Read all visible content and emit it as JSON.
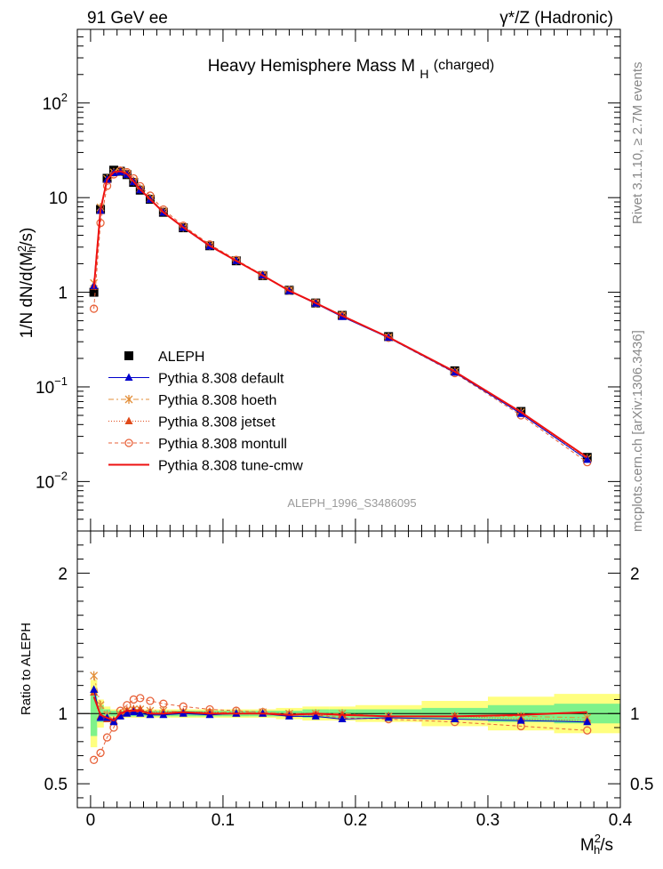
{
  "header": {
    "left": "91 GeV ee",
    "right": "γ*/Z (Hadronic)"
  },
  "side_labels": {
    "rivet": "Rivet 3.1.10, ≥ 2.7M events",
    "mcplots": "mcplots.cern.ch [arXiv:1306.3436]"
  },
  "watermark": "ALEPH_1996_S3486095",
  "colors": {
    "aleph": "#000000",
    "default": "#0000cc",
    "hoeth": "#e38f3a",
    "jetset": "#e04a1a",
    "montull": "#e8623a",
    "cmw": "#ee1111",
    "band_green": "#7ff28a",
    "band_yellow": "#ffff7f"
  },
  "chart_data": [
    {
      "type": "line",
      "title_main": "Heavy Hemisphere Mass M",
      "title_sub": "H",
      "title_tail": "(charged)",
      "ylabel": "1/N dN/d(M_h^2/s)",
      "yscale": "log",
      "ylim": [
        0.003,
        600
      ],
      "xlim": [
        -0.01,
        0.4
      ],
      "yticks": [
        {
          "v": 0.01,
          "base": "10",
          "exp": "−2"
        },
        {
          "v": 0.1,
          "base": "10",
          "exp": "−1"
        },
        {
          "v": 1,
          "base": "1",
          "exp": ""
        },
        {
          "v": 10,
          "base": "10",
          "exp": ""
        },
        {
          "v": 100,
          "base": "10",
          "exp": "2"
        }
      ],
      "legend_position": "lower-left",
      "x": [
        0.0025,
        0.0075,
        0.0125,
        0.0175,
        0.0225,
        0.0275,
        0.0325,
        0.0375,
        0.045,
        0.055,
        0.07,
        0.09,
        0.11,
        0.13,
        0.15,
        0.17,
        0.19,
        0.225,
        0.275,
        0.325,
        0.375
      ],
      "series": [
        {
          "name": "ALEPH",
          "key": "aleph",
          "marker": "square",
          "values": [
            1.0,
            7.5,
            16.0,
            19.5,
            19.0,
            17.5,
            14.5,
            12.0,
            9.6,
            7.0,
            4.8,
            3.1,
            2.15,
            1.5,
            1.05,
            0.77,
            0.57,
            0.34,
            0.148,
            0.055,
            0.018
          ]
        },
        {
          "name": "Pythia 8.308 default",
          "key": "default",
          "marker": "triangle",
          "dash": "",
          "values": [
            1.17,
            7.3,
            15.5,
            18.2,
            18.6,
            17.5,
            14.6,
            12.0,
            9.5,
            6.95,
            4.8,
            3.06,
            2.14,
            1.51,
            1.03,
            0.76,
            0.55,
            0.33,
            0.142,
            0.052,
            0.017
          ]
        },
        {
          "name": "Pythia 8.308 hoeth",
          "key": "hoeth",
          "marker": "star",
          "dash": "6,3,2,3",
          "values": [
            1.25,
            7.9,
            15.8,
            18.5,
            18.8,
            17.9,
            15.0,
            12.4,
            9.8,
            7.15,
            4.85,
            3.13,
            2.18,
            1.52,
            1.05,
            0.77,
            0.57,
            0.335,
            0.145,
            0.054,
            0.0175
          ]
        },
        {
          "name": "Pythia 8.308 jetset",
          "key": "jetset",
          "marker": "triangle",
          "dash": "1,2",
          "values": [
            1.15,
            7.4,
            15.4,
            18.4,
            19.0,
            17.8,
            14.9,
            12.3,
            9.7,
            7.05,
            4.85,
            3.12,
            2.15,
            1.5,
            1.04,
            0.765,
            0.565,
            0.335,
            0.145,
            0.053,
            0.0172
          ]
        },
        {
          "name": "Pythia 8.308 montull",
          "key": "montull",
          "marker": "circle",
          "dash": "4,3",
          "values": [
            0.67,
            5.4,
            13.3,
            17.6,
            19.3,
            18.6,
            16.0,
            13.2,
            10.5,
            7.5,
            5.05,
            3.2,
            2.2,
            1.52,
            1.04,
            0.77,
            0.565,
            0.33,
            0.14,
            0.05,
            0.016
          ]
        },
        {
          "name": "Pythia 8.308 tune-cmw",
          "key": "cmw",
          "marker": "none",
          "dash": "",
          "values": [
            1.1,
            7.4,
            15.5,
            18.6,
            19.0,
            17.8,
            14.8,
            12.2,
            9.6,
            7.0,
            4.85,
            3.1,
            2.15,
            1.5,
            1.04,
            0.77,
            0.565,
            0.335,
            0.145,
            0.054,
            0.018
          ]
        }
      ]
    },
    {
      "type": "line",
      "ylabel": "Ratio to ALEPH",
      "xlabel_main": "M",
      "xlabel_sup": "2",
      "xlabel_sub": "h",
      "xlabel_tail": "/s",
      "ylim": [
        0.33,
        2.3
      ],
      "xlim": [
        -0.01,
        0.4
      ],
      "yticks": [
        0.5,
        1,
        2
      ],
      "xticks": [
        0,
        0.1,
        0.2,
        0.3,
        0.4
      ],
      "xticklabels": [
        "0",
        "0.1",
        "0.2",
        "0.3",
        "0.4"
      ],
      "band_edges": [
        0.0,
        0.005,
        0.01,
        0.015,
        0.02,
        0.025,
        0.03,
        0.035,
        0.04,
        0.05,
        0.06,
        0.08,
        0.1,
        0.12,
        0.14,
        0.16,
        0.18,
        0.2,
        0.25,
        0.3,
        0.35,
        0.4
      ],
      "band_green": [
        0.16,
        0.06,
        0.03,
        0.02,
        0.02,
        0.02,
        0.02,
        0.02,
        0.02,
        0.02,
        0.02,
        0.02,
        0.02,
        0.02,
        0.02,
        0.03,
        0.03,
        0.03,
        0.04,
        0.06,
        0.07
      ],
      "band_yellow": [
        0.24,
        0.1,
        0.05,
        0.03,
        0.03,
        0.03,
        0.03,
        0.03,
        0.03,
        0.03,
        0.03,
        0.03,
        0.03,
        0.03,
        0.04,
        0.05,
        0.05,
        0.06,
        0.09,
        0.12,
        0.14
      ],
      "series": [
        {
          "key": "default",
          "marker": "triangle",
          "dash": "",
          "values": [
            1.17,
            0.97,
            0.97,
            0.94,
            0.98,
            1.0,
            1.01,
            1.0,
            0.99,
            0.99,
            1.0,
            0.99,
            1.0,
            1.0,
            0.98,
            0.98,
            0.96,
            0.97,
            0.96,
            0.95,
            0.94
          ]
        },
        {
          "key": "hoeth",
          "marker": "star",
          "dash": "6,3,2,3",
          "values": [
            1.27,
            1.06,
            0.99,
            0.95,
            0.99,
            1.02,
            1.03,
            1.03,
            1.02,
            1.02,
            1.01,
            1.01,
            1.01,
            1.01,
            1.0,
            1.0,
            1.0,
            0.98,
            0.98,
            0.98,
            0.97
          ]
        },
        {
          "key": "jetset",
          "marker": "triangle",
          "dash": "1,2",
          "values": [
            1.15,
            0.98,
            0.96,
            0.95,
            1.0,
            1.02,
            1.03,
            1.03,
            1.01,
            1.01,
            1.01,
            1.01,
            1.0,
            1.0,
            0.99,
            0.99,
            0.99,
            0.98,
            0.98,
            0.96,
            0.95
          ]
        },
        {
          "key": "montull",
          "marker": "circle",
          "dash": "4,3",
          "values": [
            0.67,
            0.72,
            0.83,
            0.9,
            1.02,
            1.06,
            1.1,
            1.11,
            1.09,
            1.07,
            1.05,
            1.03,
            1.02,
            1.01,
            0.99,
            0.99,
            0.97,
            0.96,
            0.94,
            0.91,
            0.88
          ]
        },
        {
          "key": "cmw",
          "marker": "none",
          "dash": "",
          "values": [
            1.12,
            0.99,
            0.97,
            0.95,
            1.0,
            1.02,
            1.02,
            1.02,
            1.0,
            1.0,
            1.01,
            1.0,
            1.0,
            1.0,
            0.99,
            1.0,
            0.99,
            0.98,
            0.98,
            0.99,
            1.01
          ]
        }
      ]
    }
  ]
}
